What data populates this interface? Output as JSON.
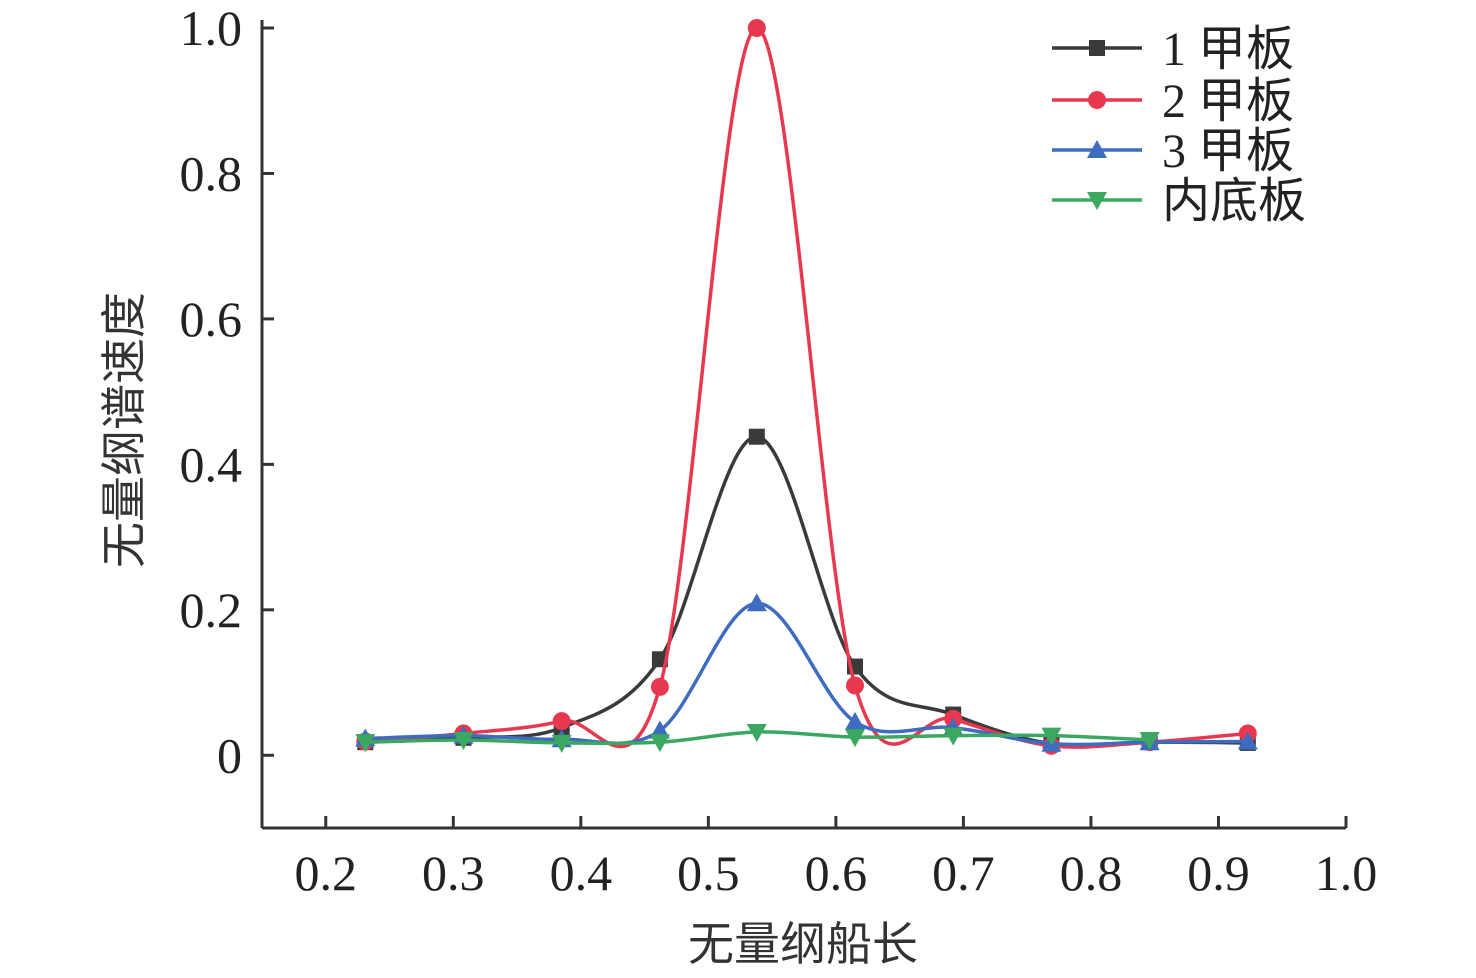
{
  "chart_data": {
    "type": "line",
    "xlabel": "无量纲船长",
    "ylabel": "无量纲谱速度",
    "xlim": [
      0.15,
      1.0
    ],
    "ylim": [
      -0.1,
      1.0
    ],
    "xticks": [
      "0.2",
      "0.3",
      "0.4",
      "0.5",
      "0.6",
      "0.7",
      "0.8",
      "0.9",
      "1.0"
    ],
    "yticks": [
      "0",
      "0.2",
      "0.4",
      "0.6",
      "0.8",
      "1.0"
    ],
    "legend_position": "top-right",
    "smooth": true,
    "x": [
      0.231,
      0.308,
      0.385,
      0.462,
      0.538,
      0.615,
      0.692,
      0.769,
      0.846,
      0.923
    ],
    "series": [
      {
        "name": "1 甲板",
        "color": "#3a3a3a",
        "marker": "square",
        "values": [
          0.018,
          0.024,
          0.038,
          0.132,
          0.438,
          0.122,
          0.056,
          0.016,
          0.018,
          0.017
        ]
      },
      {
        "name": "2 甲板",
        "color": "#e8384f",
        "marker": "circle",
        "values": [
          0.019,
          0.03,
          0.047,
          0.094,
          1.0,
          0.096,
          0.05,
          0.013,
          0.018,
          0.03
        ]
      },
      {
        "name": "3 甲板",
        "color": "#3d6cc0",
        "marker": "triangle-up",
        "values": [
          0.023,
          0.027,
          0.022,
          0.034,
          0.209,
          0.046,
          0.038,
          0.016,
          0.018,
          0.019
        ]
      },
      {
        "name": "内底板",
        "color": "#3aa860",
        "marker": "triangle-down",
        "values": [
          0.018,
          0.021,
          0.017,
          0.018,
          0.032,
          0.025,
          0.027,
          0.027,
          0.021,
          null
        ]
      }
    ]
  }
}
